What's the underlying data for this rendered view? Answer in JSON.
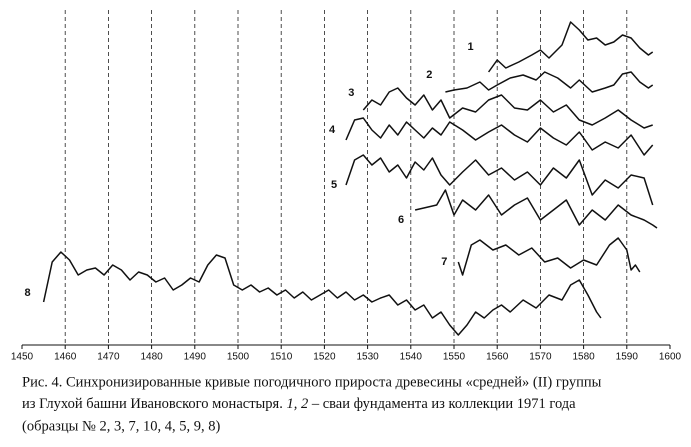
{
  "chart_data": {
    "type": "line",
    "xlim": [
      1450,
      1600
    ],
    "xticks": [
      1450,
      1460,
      1470,
      1480,
      1490,
      1500,
      1510,
      1520,
      1530,
      1540,
      1550,
      1560,
      1570,
      1580,
      1590,
      1600
    ],
    "ylim": [
      0,
      335
    ],
    "grid": true,
    "series": [
      {
        "name": "1",
        "color": "#111111",
        "x": [
          1558,
          1560,
          1562,
          1565,
          1568,
          1570,
          1572,
          1575,
          1577,
          1579,
          1581,
          1583,
          1585,
          1587,
          1589,
          1591,
          1593,
          1595,
          1596
        ],
        "values": [
          273,
          285,
          277,
          283,
          290,
          295,
          287,
          300,
          323,
          315,
          305,
          307,
          300,
          303,
          310,
          307,
          297,
          290,
          293
        ]
      },
      {
        "name": "2",
        "color": "#111111",
        "x": [
          1548,
          1550,
          1553,
          1556,
          1558,
          1560,
          1563,
          1566,
          1569,
          1571,
          1574,
          1577,
          1579,
          1582,
          1585,
          1587,
          1589,
          1591,
          1593,
          1595,
          1596
        ],
        "values": [
          253,
          255,
          257,
          263,
          255,
          260,
          267,
          270,
          265,
          273,
          267,
          257,
          265,
          253,
          257,
          260,
          271,
          273,
          263,
          257,
          260
        ]
      },
      {
        "name": "3",
        "color": "#111111",
        "x": [
          1529,
          1531,
          1533,
          1535,
          1537,
          1539,
          1541,
          1543,
          1545,
          1547,
          1549,
          1552,
          1555,
          1558,
          1561,
          1564,
          1567,
          1570,
          1573,
          1576,
          1579,
          1582,
          1585,
          1588,
          1591,
          1594,
          1596
        ],
        "values": [
          235,
          245,
          240,
          253,
          257,
          247,
          240,
          250,
          235,
          245,
          227,
          237,
          233,
          245,
          250,
          237,
          235,
          245,
          233,
          240,
          225,
          220,
          227,
          235,
          225,
          217,
          220
        ]
      },
      {
        "name": "4",
        "color": "#111111",
        "x": [
          1525,
          1527,
          1529,
          1531,
          1533,
          1535,
          1537,
          1539,
          1541,
          1543,
          1545,
          1547,
          1549,
          1552,
          1555,
          1558,
          1561,
          1564,
          1567,
          1570,
          1573,
          1576,
          1579,
          1582,
          1585,
          1588,
          1591,
          1594,
          1596
        ],
        "values": [
          205,
          225,
          227,
          215,
          207,
          220,
          210,
          223,
          215,
          207,
          217,
          210,
          223,
          215,
          205,
          213,
          220,
          210,
          203,
          217,
          207,
          200,
          213,
          195,
          203,
          197,
          210,
          190,
          200
        ]
      },
      {
        "name": "5",
        "color": "#111111",
        "x": [
          1525,
          1527,
          1529,
          1531,
          1533,
          1535,
          1537,
          1539,
          1541,
          1543,
          1545,
          1547,
          1549,
          1552,
          1555,
          1558,
          1561,
          1564,
          1567,
          1570,
          1573,
          1576,
          1579,
          1582,
          1585,
          1588,
          1591,
          1594,
          1596
        ],
        "values": [
          160,
          185,
          190,
          180,
          187,
          173,
          180,
          167,
          183,
          175,
          187,
          170,
          160,
          173,
          185,
          170,
          177,
          165,
          173,
          160,
          177,
          167,
          185,
          150,
          165,
          157,
          170,
          167,
          140
        ]
      },
      {
        "name": "6",
        "color": "#111111",
        "x": [
          1541,
          1543,
          1546,
          1548,
          1550,
          1552,
          1555,
          1558,
          1561,
          1564,
          1567,
          1570,
          1573,
          1576,
          1579,
          1582,
          1585,
          1588,
          1591,
          1594,
          1596,
          1597
        ],
        "values": [
          135,
          137,
          140,
          155,
          130,
          145,
          135,
          150,
          130,
          140,
          147,
          125,
          135,
          145,
          120,
          135,
          125,
          140,
          130,
          125,
          120,
          117
        ]
      },
      {
        "name": "7",
        "color": "#111111",
        "x": [
          1551,
          1552,
          1554,
          1556,
          1559,
          1562,
          1565,
          1568,
          1571,
          1574,
          1577,
          1580,
          1583,
          1586,
          1588,
          1590,
          1591,
          1592,
          1593
        ],
        "values": [
          83,
          70,
          100,
          105,
          95,
          100,
          90,
          97,
          83,
          87,
          77,
          85,
          80,
          100,
          107,
          95,
          75,
          80,
          73
        ]
      },
      {
        "name": "8",
        "color": "#111111",
        "x": [
          1455,
          1457,
          1459,
          1461,
          1463,
          1465,
          1467,
          1469,
          1471,
          1473,
          1475,
          1477,
          1479,
          1481,
          1483,
          1485,
          1487,
          1489,
          1491,
          1493,
          1495,
          1497,
          1499,
          1501,
          1503,
          1505,
          1507,
          1509,
          1511,
          1513,
          1515,
          1517,
          1519,
          1521,
          1523,
          1525,
          1527,
          1529,
          1531,
          1533,
          1535,
          1537,
          1539,
          1541,
          1543,
          1545,
          1547,
          1549,
          1551,
          1553,
          1555,
          1557,
          1559,
          1561,
          1563,
          1566,
          1569,
          1572,
          1575,
          1577,
          1579,
          1581,
          1583,
          1584
        ],
        "values": [
          43,
          83,
          93,
          85,
          70,
          75,
          77,
          70,
          80,
          75,
          65,
          73,
          70,
          63,
          67,
          55,
          60,
          67,
          63,
          80,
          90,
          87,
          60,
          55,
          60,
          53,
          57,
          50,
          55,
          47,
          53,
          45,
          50,
          55,
          47,
          53,
          45,
          50,
          43,
          47,
          50,
          40,
          45,
          35,
          40,
          27,
          33,
          20,
          10,
          20,
          33,
          27,
          35,
          40,
          33,
          45,
          37,
          50,
          45,
          60,
          65,
          50,
          33,
          27
        ]
      }
    ],
    "caption": [
      "Рис. 4. Синхронизированные кривые погодичного прироста древесины «средней» (II) группы",
      "из Глухой башни Ивановского монастыря. ",
      "1, 2",
      " – сваи фундамента из коллекции 1971 года",
      "(образцы № 2, 3, 7, 10, 4, 5, 9, 8)"
    ]
  }
}
